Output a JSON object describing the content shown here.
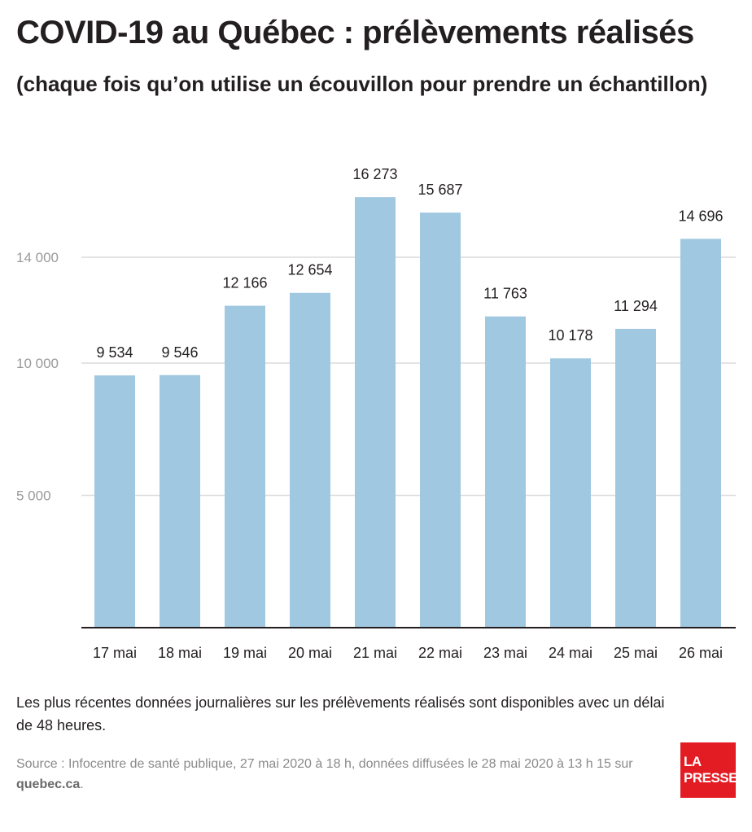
{
  "title": "COVID-19 au Québec : prélèvements réalisés",
  "subtitle": "(chaque fois qu’on utilise un écouvillon pour prendre un échantillon)",
  "note": "Les plus récentes données journalières sur les prélèvements réalisés sont disponibles avec un délai de 48 heures.",
  "source": {
    "text": "Source : Infocentre de santé publique, 27 mai 2020 à 18 h, données diffusées le 28 mai 2020 à 13 h 15 sur ",
    "site": "quebec.ca",
    "end": "."
  },
  "logo": {
    "line1": "LA",
    "line2": "PRESSE",
    "color": "#e31b23"
  },
  "chart_data": {
    "type": "bar",
    "categories": [
      "17 mai",
      "18 mai",
      "19 mai",
      "20 mai",
      "21 mai",
      "22 mai",
      "23 mai",
      "24 mai",
      "25 mai",
      "26 mai"
    ],
    "values": [
      9534,
      9546,
      12166,
      12654,
      16273,
      15687,
      11763,
      10178,
      11294,
      14696
    ],
    "value_labels": [
      "9 534",
      "9 546",
      "12 166",
      "12 654",
      "16 273",
      "15 687",
      "11 763",
      "10 178",
      "11 294",
      "14 696"
    ],
    "yticks": [
      5000,
      10000,
      14000
    ],
    "ytick_labels": [
      "5 000",
      "10 000",
      "14 000"
    ],
    "ylim": [
      0,
      17500
    ],
    "grid": true,
    "bar_color": "#a0c8e0",
    "grid_color": "#dcdcdc",
    "axis_color": "#231f20"
  }
}
